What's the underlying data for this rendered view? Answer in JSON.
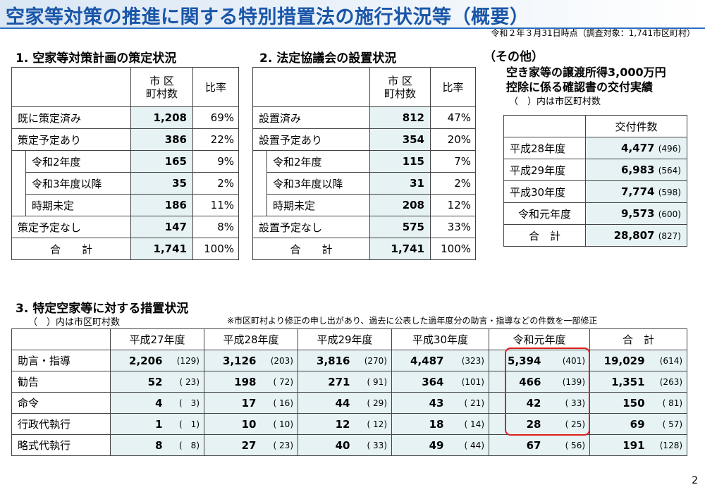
{
  "header": {
    "title": "空家等対策の推進に関する特別措置法の施行状況等（概要）",
    "as_of": "令和２年３月31日時点（調査対象：1,741市区町村）"
  },
  "section1": {
    "heading": "1. 空家等対策計画の策定状況",
    "col_count": "市 区\n町村数",
    "col_rate": "比率",
    "rows": [
      {
        "label": "既に策定済み",
        "count": "1,208",
        "rate": "69%"
      },
      {
        "label": "策定予定あり",
        "count": "386",
        "rate": "22%"
      },
      {
        "label": "令和2年度",
        "count": "165",
        "rate": "9%"
      },
      {
        "label": "令和3年度以降",
        "count": "35",
        "rate": "2%"
      },
      {
        "label": "時期未定",
        "count": "186",
        "rate": "11%"
      },
      {
        "label": "策定予定なし",
        "count": "147",
        "rate": "8%"
      },
      {
        "label": "合　　計",
        "count": "1,741",
        "rate": "100%"
      }
    ]
  },
  "section2": {
    "heading": "2. 法定協議会の設置状況",
    "col_count": "市 区\n町村数",
    "col_rate": "比率",
    "rows": [
      {
        "label": "設置済み",
        "count": "812",
        "rate": "47%"
      },
      {
        "label": "設置予定あり",
        "count": "354",
        "rate": "20%"
      },
      {
        "label": "令和2年度",
        "count": "115",
        "rate": "7%"
      },
      {
        "label": "令和3年度以降",
        "count": "31",
        "rate": "2%"
      },
      {
        "label": "時期未定",
        "count": "208",
        "rate": "12%"
      },
      {
        "label": "設置予定なし",
        "count": "575",
        "rate": "33%"
      },
      {
        "label": "合　　計",
        "count": "1,741",
        "rate": "100%"
      }
    ]
  },
  "other": {
    "heading": "（その他）",
    "subheading1": "空き家等の譲渡所得3,000万円",
    "subheading2": "控除に係る確認書の交付実績",
    "note": "（　）内は市区町村数",
    "col_header": "交付件数",
    "rows": [
      {
        "label": "平成28年度",
        "count": "4,477",
        "paren": "(496)"
      },
      {
        "label": "平成29年度",
        "count": "6,983",
        "paren": "(564)"
      },
      {
        "label": "平成30年度",
        "count": "7,774",
        "paren": "(598)"
      },
      {
        "label": "令和元年度",
        "count": "9,573",
        "paren": "(600)"
      },
      {
        "label": "合　計",
        "count": "28,807",
        "paren": "(827)"
      }
    ]
  },
  "section3": {
    "heading": "3. 特定空家等に対する措置状況",
    "note_left": "（　）内は市区町村数",
    "note_right": "※市区町村より修正の申し出があり、過去に公表した過年度分の助言・指導などの件数を一部修正",
    "columns": [
      "平成27年度",
      "平成28年度",
      "平成29年度",
      "平成30年度",
      "令和元年度",
      "合　計"
    ],
    "rows": [
      {
        "label": "助言・指導",
        "cells": [
          [
            "2,206",
            "(129)"
          ],
          [
            "3,126",
            "(203)"
          ],
          [
            "3,816",
            "(270)"
          ],
          [
            "4,487",
            "(323)"
          ],
          [
            "5,394",
            "(401)"
          ],
          [
            "19,029",
            "(614)"
          ]
        ]
      },
      {
        "label": "勧告",
        "cells": [
          [
            "52",
            "( 23)"
          ],
          [
            "198",
            "( 72)"
          ],
          [
            "271",
            "( 91)"
          ],
          [
            "364",
            "(101)"
          ],
          [
            "466",
            "(139)"
          ],
          [
            "1,351",
            "(263)"
          ]
        ]
      },
      {
        "label": "命令",
        "cells": [
          [
            "4",
            "(　3)"
          ],
          [
            "17",
            "( 16)"
          ],
          [
            "44",
            "( 29)"
          ],
          [
            "43",
            "( 21)"
          ],
          [
            "42",
            "( 33)"
          ],
          [
            "150",
            "( 81)"
          ]
        ]
      },
      {
        "label": "行政代執行",
        "cells": [
          [
            "1",
            "(　1)"
          ],
          [
            "10",
            "( 10)"
          ],
          [
            "12",
            "( 12)"
          ],
          [
            "18",
            "( 14)"
          ],
          [
            "28",
            "( 25)"
          ],
          [
            "69",
            "( 57)"
          ]
        ]
      },
      {
        "label": "略式代執行",
        "cells": [
          [
            "8",
            "(　8)"
          ],
          [
            "27",
            "( 23)"
          ],
          [
            "40",
            "( 33)"
          ],
          [
            "49",
            "( 44)"
          ],
          [
            "67",
            "( 56)"
          ],
          [
            "191",
            "(128)"
          ]
        ]
      }
    ]
  },
  "page_number": "2"
}
